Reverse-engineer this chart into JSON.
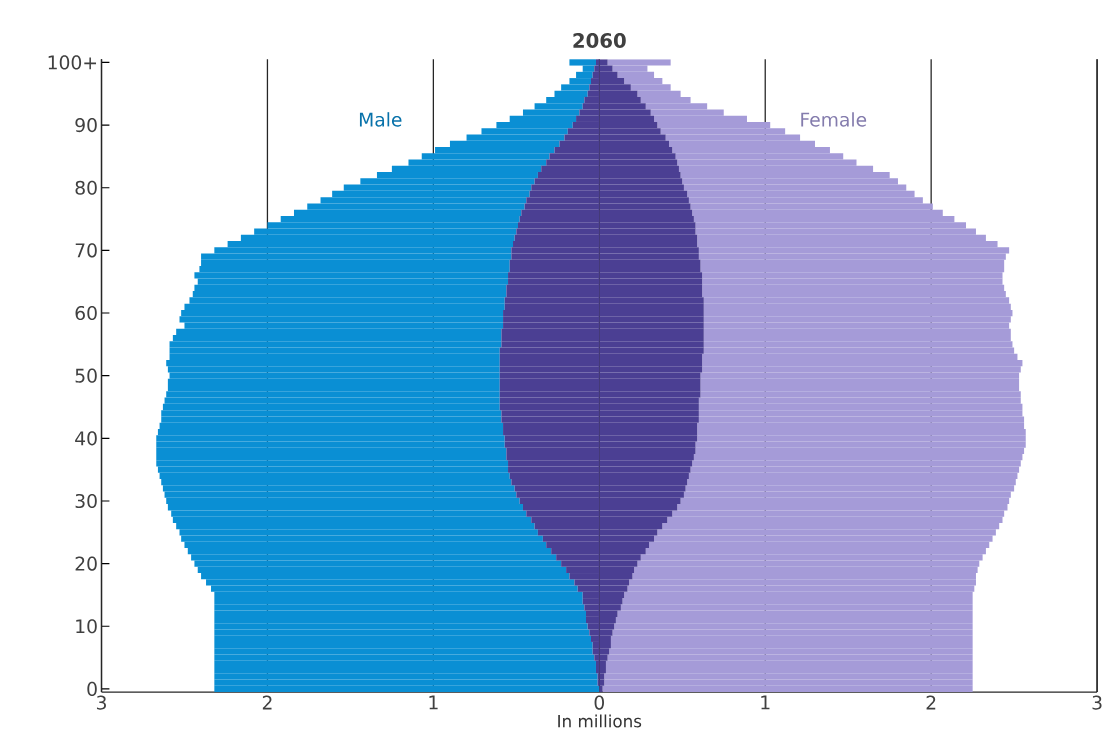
{
  "chart_data": {
    "type": "bar",
    "orientation": "horizontal",
    "stacked": true,
    "title": "2060",
    "xlabel": "In millions",
    "grid": "x",
    "categories": [
      "100+",
      null,
      null,
      null,
      null,
      null,
      null,
      null,
      null,
      null,
      "90",
      null,
      null,
      null,
      null,
      null,
      null,
      null,
      null,
      null,
      "80",
      null,
      null,
      null,
      null,
      null,
      null,
      null,
      null,
      null,
      "70",
      null,
      null,
      null,
      null,
      null,
      null,
      null,
      null,
      null,
      "60",
      null,
      null,
      null,
      null,
      null,
      null,
      null,
      null,
      null,
      "50",
      null,
      null,
      null,
      null,
      null,
      null,
      null,
      null,
      null,
      "40",
      null,
      null,
      null,
      null,
      null,
      null,
      null,
      null,
      null,
      "30",
      null,
      null,
      null,
      null,
      null,
      null,
      null,
      null,
      null,
      "20",
      null,
      null,
      null,
      null,
      null,
      null,
      null,
      null,
      null,
      "10",
      null,
      null,
      null,
      null,
      null,
      null,
      null,
      null,
      null,
      "0"
    ],
    "xlim": [
      -3,
      3
    ],
    "xticks": [
      {
        "value": -3,
        "label": "3"
      },
      {
        "value": -2,
        "label": "2"
      },
      {
        "value": -1,
        "label": "1"
      },
      0,
      1,
      2,
      3
    ],
    "series": [
      {
        "color": "#4b3f93",
        "values": [
          -0.02,
          -0.03,
          -0.04,
          -0.05,
          -0.06,
          -0.07,
          -0.09,
          -0.1,
          -0.12,
          -0.14,
          -0.16,
          -0.19,
          -0.21,
          -0.24,
          -0.27,
          -0.3,
          -0.32,
          -0.35,
          -0.37,
          -0.39,
          -0.41,
          -0.42,
          -0.44,
          -0.45,
          -0.47,
          -0.48,
          -0.49,
          -0.5,
          -0.51,
          -0.52,
          -0.53,
          -0.53,
          -0.54,
          -0.54,
          -0.55,
          -0.55,
          -0.56,
          -0.56,
          -0.57,
          -0.57,
          -0.58,
          -0.58,
          -0.58,
          -0.59,
          -0.59,
          -0.59,
          -0.6,
          -0.6,
          -0.6,
          -0.6,
          -0.6,
          -0.6,
          -0.6,
          -0.6,
          -0.6,
          -0.6,
          -0.59,
          -0.59,
          -0.58,
          -0.58,
          -0.57,
          -0.57,
          -0.56,
          -0.56,
          -0.55,
          -0.55,
          -0.54,
          -0.53,
          -0.51,
          -0.5,
          -0.48,
          -0.46,
          -0.44,
          -0.41,
          -0.39,
          -0.37,
          -0.34,
          -0.32,
          -0.29,
          -0.26,
          -0.23,
          -0.2,
          -0.18,
          -0.15,
          -0.13,
          -0.1,
          -0.1,
          -0.09,
          -0.08,
          -0.08,
          -0.07,
          -0.06,
          -0.05,
          -0.04,
          -0.04,
          -0.03,
          -0.02,
          -0.02,
          -0.01,
          -0.01,
          null
        ]
      },
      {
        "color": "#4b3f93",
        "values": [
          0.05,
          0.08,
          0.11,
          0.15,
          0.19,
          0.23,
          0.25,
          0.28,
          0.31,
          0.33,
          0.35,
          0.37,
          0.4,
          0.42,
          0.44,
          0.46,
          0.47,
          0.48,
          0.49,
          0.5,
          0.51,
          0.53,
          0.54,
          0.55,
          0.56,
          0.57,
          0.58,
          0.58,
          0.59,
          0.59,
          0.6,
          0.6,
          0.61,
          0.61,
          0.62,
          0.62,
          0.62,
          0.62,
          0.63,
          0.63,
          0.63,
          0.63,
          0.63,
          0.63,
          0.63,
          0.63,
          0.63,
          0.62,
          0.62,
          0.62,
          0.61,
          0.61,
          0.61,
          0.61,
          0.6,
          0.6,
          0.6,
          0.6,
          0.59,
          0.59,
          0.59,
          0.58,
          0.58,
          0.57,
          0.56,
          0.55,
          0.54,
          0.53,
          0.52,
          0.51,
          0.49,
          0.47,
          0.44,
          0.41,
          0.38,
          0.35,
          0.33,
          0.3,
          0.28,
          0.25,
          0.23,
          0.21,
          0.2,
          0.18,
          0.17,
          0.15,
          0.14,
          0.13,
          0.11,
          0.1,
          0.09,
          0.08,
          0.07,
          0.07,
          0.06,
          0.05,
          0.04,
          0.04,
          0.03,
          0.03,
          0.02
        ]
      },
      {
        "name": "Male",
        "color": "#0a8fd4",
        "values": [
          -0.16,
          -0.07,
          -0.1,
          -0.13,
          -0.17,
          -0.2,
          -0.23,
          -0.29,
          -0.34,
          -0.4,
          -0.46,
          -0.52,
          -0.59,
          -0.66,
          -0.72,
          -0.77,
          -0.83,
          -0.9,
          -0.97,
          -1.05,
          -1.13,
          -1.19,
          -1.24,
          -1.31,
          -1.37,
          -1.44,
          -1.51,
          -1.58,
          -1.65,
          -1.72,
          -1.79,
          -1.87,
          -1.86,
          -1.87,
          -1.89,
          -1.87,
          -1.88,
          -1.89,
          -1.9,
          -1.93,
          -1.94,
          -1.95,
          -1.92,
          -1.96,
          -1.98,
          -2.0,
          -1.99,
          -1.99,
          -2.01,
          -2.0,
          -1.99,
          -2.0,
          -2.0,
          -2.01,
          -2.02,
          -2.03,
          -2.05,
          -2.05,
          -2.07,
          -2.08,
          -2.1,
          -2.1,
          -2.11,
          -2.11,
          -2.12,
          -2.11,
          -2.11,
          -2.11,
          -2.12,
          -2.12,
          -2.13,
          -2.14,
          -2.14,
          -2.16,
          -2.16,
          -2.16,
          -2.18,
          -2.18,
          -2.19,
          -2.2,
          -2.21,
          -2.22,
          -2.22,
          -2.22,
          -2.21,
          -2.22,
          -2.22,
          -2.23,
          -2.24,
          -2.24,
          -2.25,
          -2.26,
          -2.27,
          -2.28,
          -2.28,
          -2.29,
          -2.3,
          -2.3,
          -2.31,
          -2.31,
          -2.32
        ]
      },
      {
        "name": "Female",
        "color": "#a59bd8",
        "values": [
          0.38,
          0.21,
          0.22,
          0.23,
          0.24,
          0.26,
          0.3,
          0.37,
          0.44,
          0.56,
          0.68,
          0.75,
          0.81,
          0.88,
          0.95,
          1.01,
          1.08,
          1.17,
          1.26,
          1.3,
          1.34,
          1.37,
          1.41,
          1.46,
          1.51,
          1.57,
          1.63,
          1.69,
          1.74,
          1.81,
          1.87,
          1.85,
          1.83,
          1.83,
          1.81,
          1.81,
          1.82,
          1.83,
          1.84,
          1.85,
          1.86,
          1.85,
          1.84,
          1.85,
          1.85,
          1.86,
          1.87,
          1.9,
          1.93,
          1.92,
          1.92,
          1.92,
          1.92,
          1.93,
          1.94,
          1.95,
          1.95,
          1.96,
          1.97,
          1.98,
          1.98,
          1.99,
          1.98,
          1.98,
          1.98,
          1.98,
          1.98,
          1.98,
          1.98,
          1.97,
          1.98,
          1.99,
          2.0,
          2.02,
          2.03,
          2.04,
          2.04,
          2.05,
          2.05,
          2.06,
          2.06,
          2.07,
          2.07,
          2.09,
          2.09,
          2.1,
          2.11,
          2.12,
          2.14,
          2.15,
          2.16,
          2.17,
          2.18,
          2.18,
          2.19,
          2.2,
          2.21,
          2.21,
          2.22,
          2.22,
          2.23
        ]
      }
    ]
  }
}
